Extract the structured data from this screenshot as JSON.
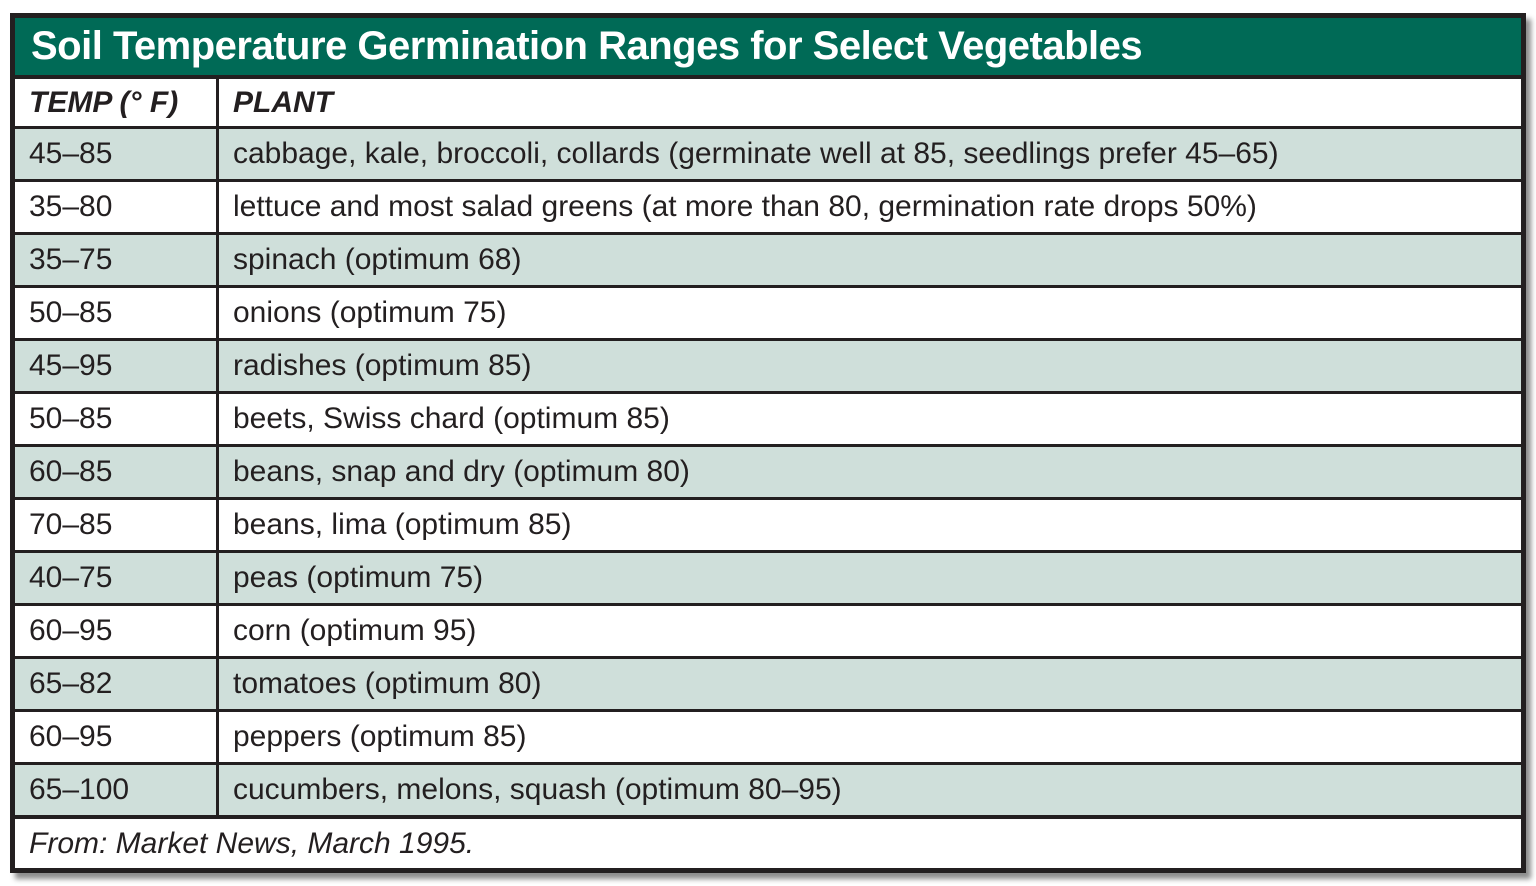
{
  "title": "Soil Temperature Germination Ranges for Select Vegetables",
  "columns": {
    "temp": "TEMP (° F)",
    "plant": "PLANT"
  },
  "rows": [
    {
      "temp": "45–85",
      "plant": "cabbage, kale, broccoli, collards (germinate well at 85, seedlings prefer 45–65)"
    },
    {
      "temp": "35–80",
      "plant": "lettuce and most salad greens (at more than 80, germination rate drops 50%)"
    },
    {
      "temp": "35–75",
      "plant": "spinach (optimum 68)"
    },
    {
      "temp": "50–85",
      "plant": "onions (optimum 75)"
    },
    {
      "temp": "45–95",
      "plant": "radishes (optimum 85)"
    },
    {
      "temp": "50–85",
      "plant": "beets, Swiss chard (optimum 85)"
    },
    {
      "temp": "60–85",
      "plant": "beans, snap and dry (optimum 80)"
    },
    {
      "temp": "70–85",
      "plant": "beans, lima (optimum 85)"
    },
    {
      "temp": "40–75",
      "plant": "peas (optimum 75)"
    },
    {
      "temp": "60–95",
      "plant": "corn (optimum 95)"
    },
    {
      "temp": "65–82",
      "plant": "tomatoes (optimum 80)"
    },
    {
      "temp": "60–95",
      "plant": "peppers (optimum 85)"
    },
    {
      "temp": "65–100",
      "plant": "cucumbers, melons, squash (optimum 80–95)"
    }
  ],
  "source": "From: Market News, March 1995.",
  "colors": {
    "header_green": "#006A56",
    "row_shade": "#CFDFDA",
    "border": "#231F20",
    "title_text": "#FFFFFF",
    "body_text": "#231F20"
  }
}
